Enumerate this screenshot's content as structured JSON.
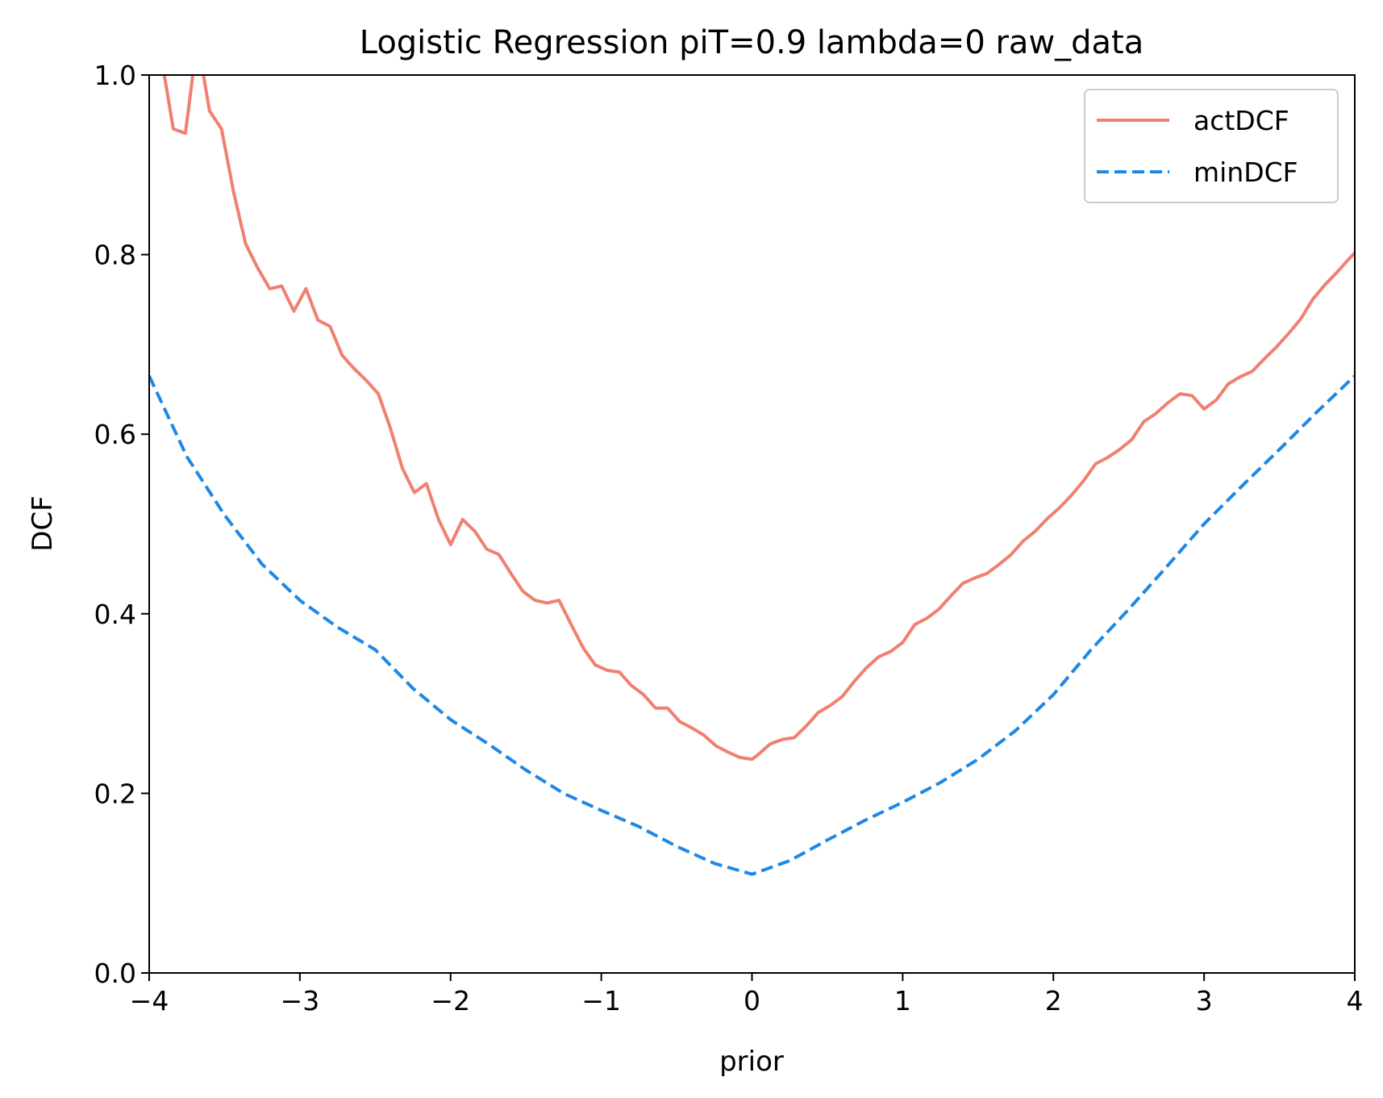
{
  "chart_data": {
    "type": "line",
    "title": "Logistic Regression piT=0.9 lambda=0 raw_data",
    "xlabel": "prior",
    "ylabel": "DCF",
    "xlim": [
      -4,
      4
    ],
    "ylim": [
      0,
      1
    ],
    "xticks": [
      "−4",
      "−3",
      "−2",
      "−1",
      "0",
      "1",
      "2",
      "3",
      "4"
    ],
    "xtick_values": [
      -4,
      -3,
      -2,
      -1,
      0,
      1,
      2,
      3,
      4
    ],
    "yticks": [
      "0.0",
      "0.2",
      "0.4",
      "0.6",
      "0.8",
      "1.0"
    ],
    "ytick_values": [
      0,
      0.2,
      0.4,
      0.6,
      0.8,
      1.0
    ],
    "grid": false,
    "legend_position": "top-right",
    "series": [
      {
        "name": "actDCF",
        "color": "#f08070",
        "style": "solid",
        "x": [
          -4.0,
          -3.92,
          -3.84,
          -3.76,
          -3.68,
          -3.6,
          -3.52,
          -3.44,
          -3.36,
          -3.28,
          -3.2,
          -3.12,
          -3.04,
          -2.96,
          -2.88,
          -2.8,
          -2.72,
          -2.64,
          -2.56,
          -2.48,
          -2.4,
          -2.32,
          -2.24,
          -2.16,
          -2.08,
          -2.0,
          -1.92,
          -1.84,
          -1.76,
          -1.68,
          -1.6,
          -1.52,
          -1.44,
          -1.36,
          -1.28,
          -1.2,
          -1.12,
          -1.04,
          -0.96,
          -0.88,
          -0.8,
          -0.72,
          -0.64,
          -0.56,
          -0.48,
          -0.4,
          -0.32,
          -0.24,
          -0.16,
          -0.08,
          0.0,
          0.04,
          0.12,
          0.2,
          0.28,
          0.36,
          0.44,
          0.52,
          0.6,
          0.68,
          0.76,
          0.84,
          0.92,
          1.0,
          1.08,
          1.16,
          1.24,
          1.32,
          1.4,
          1.48,
          1.56,
          1.64,
          1.72,
          1.8,
          1.88,
          1.96,
          2.04,
          2.12,
          2.2,
          2.28,
          2.36,
          2.44,
          2.52,
          2.6,
          2.68,
          2.76,
          2.84,
          2.92,
          3.0,
          3.08,
          3.16,
          3.24,
          3.32,
          3.4,
          3.48,
          3.56,
          3.64,
          3.72,
          3.8,
          3.88,
          3.96,
          4.0
        ],
        "values": [
          1.08,
          1.02,
          0.94,
          0.935,
          1.04,
          0.96,
          0.94,
          0.87,
          0.812,
          0.785,
          0.762,
          0.765,
          0.737,
          0.762,
          0.727,
          0.72,
          0.688,
          0.673,
          0.66,
          0.645,
          0.607,
          0.562,
          0.535,
          0.545,
          0.505,
          0.477,
          0.505,
          0.492,
          0.472,
          0.466,
          0.445,
          0.425,
          0.415,
          0.412,
          0.415,
          0.388,
          0.362,
          0.343,
          0.337,
          0.335,
          0.32,
          0.31,
          0.295,
          0.295,
          0.28,
          0.273,
          0.265,
          0.253,
          0.246,
          0.24,
          0.238,
          0.243,
          0.255,
          0.26,
          0.262,
          0.275,
          0.29,
          0.298,
          0.308,
          0.325,
          0.34,
          0.352,
          0.358,
          0.368,
          0.388,
          0.395,
          0.405,
          0.42,
          0.434,
          0.44,
          0.445,
          0.455,
          0.466,
          0.481,
          0.492,
          0.506,
          0.518,
          0.532,
          0.548,
          0.567,
          0.574,
          0.583,
          0.594,
          0.614,
          0.623,
          0.635,
          0.645,
          0.643,
          0.628,
          0.638,
          0.656,
          0.664,
          0.67,
          0.684,
          0.697,
          0.712,
          0.728,
          0.75,
          0.766,
          0.78,
          0.795,
          0.802
        ]
      },
      {
        "name": "minDCF",
        "color": "#1e88e5",
        "style": "dashed",
        "x": [
          -4.0,
          -3.75,
          -3.5,
          -3.25,
          -3.0,
          -2.75,
          -2.5,
          -2.25,
          -2.0,
          -1.75,
          -1.5,
          -1.25,
          -1.0,
          -0.75,
          -0.5,
          -0.25,
          0.0,
          0.25,
          0.5,
          0.75,
          1.0,
          1.25,
          1.5,
          1.75,
          2.0,
          2.25,
          2.5,
          2.75,
          3.0,
          3.25,
          3.5,
          3.75,
          4.0
        ],
        "values": [
          0.665,
          0.575,
          0.51,
          0.455,
          0.415,
          0.385,
          0.36,
          0.317,
          0.282,
          0.255,
          0.226,
          0.2,
          0.181,
          0.163,
          0.141,
          0.122,
          0.11,
          0.125,
          0.148,
          0.17,
          0.19,
          0.212,
          0.238,
          0.27,
          0.31,
          0.36,
          0.405,
          0.452,
          0.5,
          0.542,
          0.583,
          0.625,
          0.665
        ]
      }
    ]
  }
}
